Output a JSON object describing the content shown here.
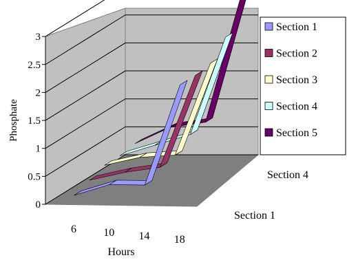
{
  "chart_data": {
    "type": "line",
    "subtype": "3d-line",
    "title": "",
    "xlabel": "Hours",
    "ylabel": "Phosphate",
    "zlabel": "",
    "x": [
      "6",
      "10",
      "14",
      "18"
    ],
    "z_tick_labels": [
      "Section 4",
      "Section 1"
    ],
    "y_tick_labels": [
      "0",
      "0.5",
      "1",
      "1.5",
      "2",
      "2.5",
      "3"
    ],
    "ylim": [
      0,
      3
    ],
    "grid": true,
    "legend_position": "right",
    "series": [
      {
        "name": "Section 1",
        "color": "#9999FF",
        "values": [
          0.1,
          0.3,
          0.3,
          2.1
        ]
      },
      {
        "name": "Section 2",
        "color": "#993366",
        "values": [
          0.2,
          0.35,
          0.45,
          2.1
        ]
      },
      {
        "name": "Section 3",
        "color": "#FFFFCC",
        "values": [
          0.3,
          0.45,
          0.5,
          2.15
        ]
      },
      {
        "name": "Section 4",
        "color": "#CCFFFF",
        "values": [
          0.3,
          0.5,
          0.7,
          2.45
        ]
      },
      {
        "name": "Section 5",
        "color": "#660066",
        "values": [
          0.35,
          0.65,
          0.75,
          3.0
        ]
      }
    ]
  }
}
